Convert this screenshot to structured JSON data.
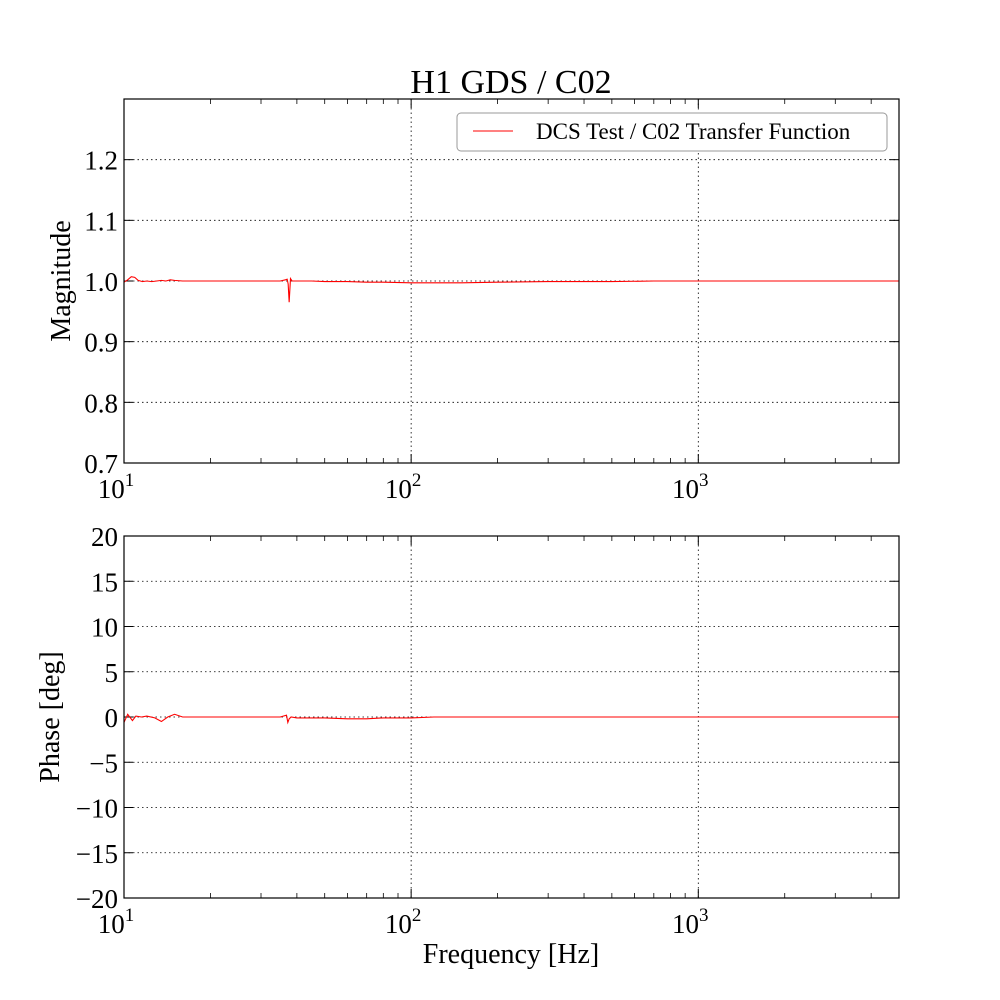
{
  "chart_data": [
    {
      "type": "line",
      "title": "H1 GDS / C02",
      "xlabel": "",
      "ylabel": "Magnitude",
      "x_scale": "log",
      "xlim": [
        10,
        5000
      ],
      "ylim": [
        0.7,
        1.3
      ],
      "grid": true,
      "legend_position": "top-right",
      "x_ticks": [
        {
          "base": "10",
          "exp": "1",
          "value": 10
        },
        {
          "base": "10",
          "exp": "2",
          "value": 100
        },
        {
          "base": "10",
          "exp": "3",
          "value": 1000
        }
      ],
      "y_ticks": [
        "0.7",
        "0.8",
        "0.9",
        "1.0",
        "1.1",
        "1.2"
      ],
      "series": [
        {
          "name": "DCS Test / C02 Transfer Function",
          "color": "#ff0000",
          "x": [
            10,
            10.3,
            10.6,
            10.9,
            11.2,
            11.6,
            12.0,
            12.5,
            13.0,
            13.5,
            14.0,
            14.5,
            15.0,
            16,
            18,
            20,
            24,
            28,
            32,
            35,
            36.5,
            37.0,
            37.3,
            37.6,
            38.0,
            38.5,
            40,
            45,
            50,
            60,
            70,
            80,
            100,
            120,
            150,
            200,
            300,
            500,
            700,
            1000,
            1500,
            2000,
            3000,
            4000,
            5000
          ],
          "y": [
            0.998,
            1.002,
            1.007,
            1.006,
            1.001,
            0.999,
            1.0,
            0.999,
            1.0,
            1.001,
            1.0,
            1.002,
            1.001,
            1.0,
            1.0,
            1.0,
            1.0,
            1.0,
            1.0,
            1.0,
            1.002,
            1.003,
            0.995,
            0.965,
            1.004,
            1.0,
            1.0,
            1.0,
            0.999,
            0.999,
            0.998,
            0.998,
            0.997,
            0.997,
            0.997,
            0.998,
            0.999,
            0.999,
            1.0,
            1.0,
            1.0,
            1.0,
            1.0,
            1.0,
            1.0
          ]
        }
      ]
    },
    {
      "type": "line",
      "title": "",
      "xlabel": "Frequency [Hz]",
      "ylabel": "Phase [deg]",
      "x_scale": "log",
      "xlim": [
        10,
        5000
      ],
      "ylim": [
        -20,
        20
      ],
      "grid": true,
      "x_ticks": [
        {
          "base": "10",
          "exp": "1",
          "value": 10
        },
        {
          "base": "10",
          "exp": "2",
          "value": 100
        },
        {
          "base": "10",
          "exp": "3",
          "value": 1000
        }
      ],
      "y_ticks": [
        "−20",
        "−15",
        "−10",
        "−5",
        "0",
        "5",
        "10",
        "15",
        "20"
      ],
      "series": [
        {
          "color": "#ff0000",
          "x": [
            10,
            10.3,
            10.7,
            11.0,
            11.5,
            12.0,
            12.8,
            13.5,
            14.2,
            15.0,
            16,
            18,
            20,
            25,
            30,
            35,
            36.8,
            37.2,
            37.6,
            38.2,
            40,
            50,
            60,
            70,
            80,
            100,
            120,
            150,
            200,
            300,
            500,
            700,
            1000,
            1500,
            2000,
            3000,
            4000,
            5000
          ],
          "y": [
            -0.6,
            0.3,
            -0.4,
            0.1,
            0.0,
            0.1,
            -0.1,
            -0.5,
            0.0,
            0.3,
            0.0,
            0.0,
            0.0,
            0.0,
            0.0,
            0.0,
            0.2,
            -0.6,
            -0.2,
            0.0,
            -0.1,
            -0.1,
            -0.2,
            -0.2,
            -0.1,
            -0.1,
            0.0,
            0.0,
            0.0,
            0.0,
            0.0,
            0.0,
            0.0,
            0.0,
            0.0,
            0.0,
            0.0,
            0.0
          ]
        }
      ]
    }
  ]
}
